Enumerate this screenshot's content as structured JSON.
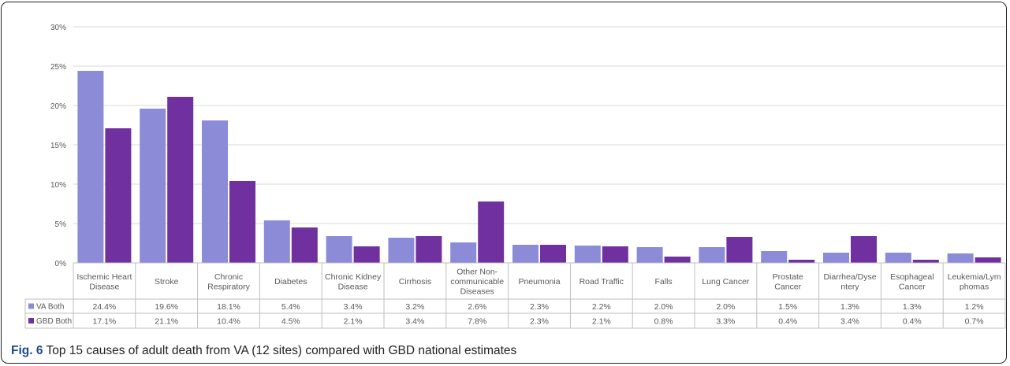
{
  "caption": {
    "label": "Fig. 6",
    "text": "Top 15 causes of adult death from VA (12 sites) compared with GBD national estimates"
  },
  "colors": {
    "va": "#8b8bd8",
    "gbd": "#7030a0",
    "grid": "#d9d9d9",
    "text": "#595959"
  },
  "chart_data": {
    "type": "bar",
    "title": "",
    "xlabel": "",
    "ylabel": "",
    "ylim": [
      0,
      30
    ],
    "yticks": [
      "0%",
      "5%",
      "10%",
      "15%",
      "20%",
      "25%",
      "30%"
    ],
    "grid": true,
    "legend": "left of data table",
    "categories": [
      [
        "Ischemic Heart",
        "Disease"
      ],
      [
        "Stroke"
      ],
      [
        "Chronic",
        "Respiratory"
      ],
      [
        "Diabetes"
      ],
      [
        "Chronic Kidney",
        "Disease"
      ],
      [
        "Cirrhosis"
      ],
      [
        "Other Non-",
        "communicable",
        "Diseases"
      ],
      [
        "Pneumonia"
      ],
      [
        "Road Traffic"
      ],
      [
        "Falls"
      ],
      [
        "Lung Cancer"
      ],
      [
        "Prostate",
        "Cancer"
      ],
      [
        "Diarrhea/Dyse",
        "ntery"
      ],
      [
        "Esophageal",
        "Cancer"
      ],
      [
        "Leukemia/Lym",
        "phomas"
      ]
    ],
    "series": [
      {
        "name": "VA Both",
        "values": [
          24.4,
          19.6,
          18.1,
          5.4,
          3.4,
          3.2,
          2.6,
          2.3,
          2.2,
          2.0,
          2.0,
          1.5,
          1.3,
          1.3,
          1.2
        ],
        "labels": [
          "24.4%",
          "19.6%",
          "18.1%",
          "5.4%",
          "3.4%",
          "3.2%",
          "2.6%",
          "2.3%",
          "2.2%",
          "2.0%",
          "2.0%",
          "1.5%",
          "1.3%",
          "1.3%",
          "1.2%"
        ]
      },
      {
        "name": "GBD Both",
        "values": [
          17.1,
          21.1,
          10.4,
          4.5,
          2.1,
          3.4,
          7.8,
          2.3,
          2.1,
          0.8,
          3.3,
          0.4,
          3.4,
          0.4,
          0.7
        ],
        "labels": [
          "17.1%",
          "21.1%",
          "10.4%",
          "4.5%",
          "2.1%",
          "3.4%",
          "7.8%",
          "2.3%",
          "2.1%",
          "0.8%",
          "3.3%",
          "0.4%",
          "3.4%",
          "0.4%",
          "0.7%"
        ]
      }
    ]
  }
}
